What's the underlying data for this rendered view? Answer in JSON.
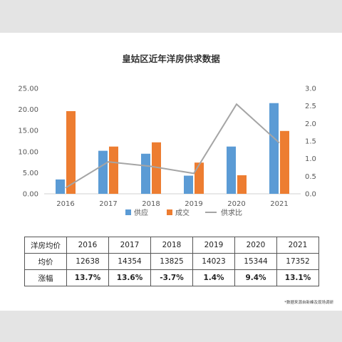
{
  "chart_data": {
    "type": "bar",
    "title": "皇姑区近年洋房供求数据",
    "categories": [
      "2016",
      "2017",
      "2018",
      "2019",
      "2020",
      "2021"
    ],
    "series": [
      {
        "name": "供应",
        "type": "bar",
        "axis": "left",
        "color": "#5b9bd5",
        "values": [
          3.4,
          10.2,
          9.5,
          4.3,
          11.2,
          21.5
        ]
      },
      {
        "name": "成交",
        "type": "bar",
        "axis": "left",
        "color": "#ed7d31",
        "values": [
          19.6,
          11.2,
          12.2,
          7.4,
          4.4,
          14.9
        ]
      },
      {
        "name": "供求比",
        "type": "line",
        "axis": "right",
        "color": "#a5a5a5",
        "values": [
          0.17,
          0.91,
          0.78,
          0.58,
          2.55,
          1.45
        ]
      }
    ],
    "left_ticks": [
      "0.00",
      "5.00",
      "10.00",
      "15.00",
      "20.00",
      "25.00"
    ],
    "right_ticks": [
      "0.0",
      "0.5",
      "1.0",
      "1.5",
      "2.0",
      "2.5",
      "3.0"
    ],
    "ylim_left": [
      0,
      25
    ],
    "ylim_right": [
      0,
      3
    ],
    "legend_position": "bottom",
    "grid": false
  },
  "table": {
    "header": [
      "洋房均价",
      "2016",
      "2017",
      "2018",
      "2019",
      "2020",
      "2021"
    ],
    "rows": [
      [
        "均价",
        "12638",
        "14354",
        "13825",
        "14023",
        "15344",
        "17352"
      ],
      [
        "涨幅",
        "13.7%",
        "13.6%",
        "-3.7%",
        "1.4%",
        "9.4%",
        "13.1%"
      ]
    ]
  },
  "source_note": "*数据来源自新峰及现场调研"
}
